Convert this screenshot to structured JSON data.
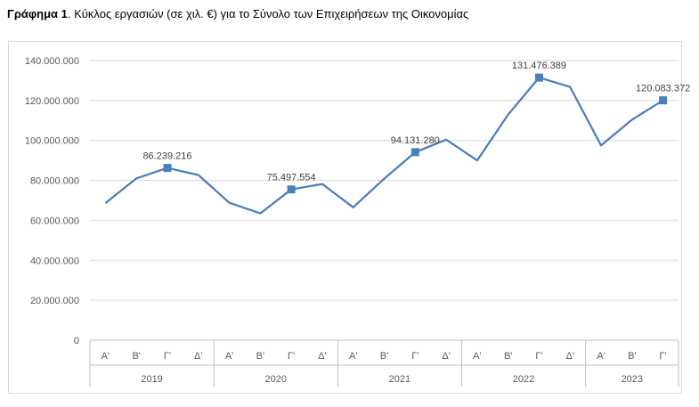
{
  "caption": {
    "label": "Γράφημα 1",
    "text": ". Κύκλος εργασιών (σε χιλ. €) για το Σύνολο των Επιχειρήσεων της Οικονομίας"
  },
  "chart_data": {
    "type": "line",
    "title": "",
    "xlabel": "",
    "ylabel": "",
    "ylim": [
      0,
      140000000
    ],
    "y_ticks": [
      0,
      20000000,
      40000000,
      60000000,
      80000000,
      100000000,
      120000000,
      140000000
    ],
    "y_tick_labels": [
      "0",
      "20.000.000",
      "40.000.000",
      "60.000.000",
      "80.000.000",
      "100.000.000",
      "120.000.000",
      "140.000.000"
    ],
    "grid": true,
    "legend": "none",
    "line_color": "#4a7ebb",
    "groups": [
      {
        "label": "2019",
        "quarters": [
          "Α'",
          "Β'",
          "Γ'",
          "Δ'"
        ]
      },
      {
        "label": "2020",
        "quarters": [
          "Α'",
          "Β'",
          "Γ'",
          "Δ'"
        ]
      },
      {
        "label": "2021",
        "quarters": [
          "Α'",
          "Β'",
          "Γ'",
          "Δ'"
        ]
      },
      {
        "label": "2022",
        "quarters": [
          "Α'",
          "Β'",
          "Γ'",
          "Δ'"
        ]
      },
      {
        "label": "2023",
        "quarters": [
          "Α'",
          "Β'",
          "Γ'"
        ]
      }
    ],
    "values": [
      68600000,
      81000000,
      86239216,
      82700000,
      68800000,
      63500000,
      75497554,
      78200000,
      66500000,
      80900000,
      94131280,
      100400000,
      90000000,
      113000000,
      131476389,
      126800000,
      97500000,
      110400000,
      120083372
    ],
    "markers": [
      {
        "index": 2,
        "label": "86.239.216"
      },
      {
        "index": 6,
        "label": "75.497.554"
      },
      {
        "index": 10,
        "label": "94.131.280"
      },
      {
        "index": 14,
        "label": "131.476.389"
      },
      {
        "index": 18,
        "label": "120.083.372"
      }
    ]
  }
}
